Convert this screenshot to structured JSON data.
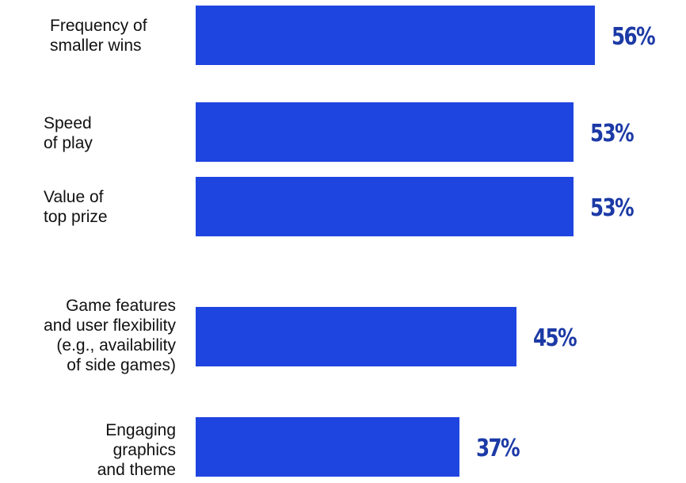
{
  "chart_data": {
    "type": "bar",
    "orientation": "horizontal",
    "categories": [
      "Frequency of\nsmaller wins",
      "Speed\nof play",
      "Value of\ntop prize",
      "Game features\nand user flexibility\n(e.g., availability\nof side games)",
      "Engaging\ngraphics\nand theme"
    ],
    "values": [
      56,
      53,
      53,
      45,
      37
    ],
    "value_labels": [
      "56%",
      "53%",
      "53%",
      "45%",
      "37%"
    ],
    "unit": "%",
    "title": "",
    "xlabel": "",
    "ylabel": "",
    "grid": false,
    "legend": "none",
    "colors": {
      "bar": "#1f45e0",
      "value_text": "#1c3aa6",
      "label_text": "#111111"
    }
  }
}
